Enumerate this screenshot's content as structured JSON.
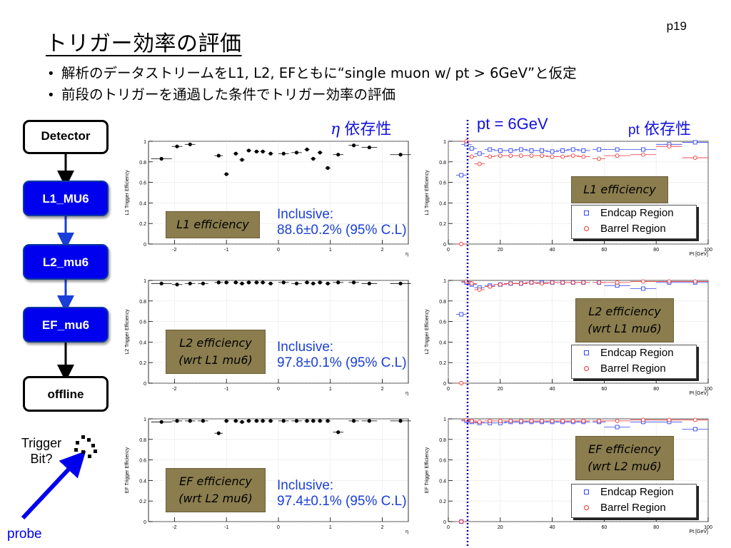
{
  "page_number": "p19",
  "title": "トリガー効率の評価",
  "bullets": [
    "解析のデータストリームをL1, L2, EFともに“single muon w/ pt > 6GeV”と仮定",
    "前段のトリガーを通過した条件でトリガー効率の評価"
  ],
  "flow": {
    "detector": "Detector",
    "l1": "L1_MU6",
    "l2": "L2_mu6",
    "ef": "EF_mu6",
    "offline": "offline",
    "trigger_bit": "Trigger\nBit?",
    "probe": "probe"
  },
  "headers": {
    "eta_sym": "η",
    "eta_dep": "依存性",
    "pt_cut": "pt = 6GeV",
    "pt_sym": "pt",
    "pt_dep": "依存性"
  },
  "eff_labels": {
    "l1": "L1 efficiency",
    "l2_line1": "L2 efficiency",
    "l2_line2": "(wrt L1 mu6)",
    "ef_line1": "EF efficiency",
    "ef_line2": "(wrt L2 mu6)"
  },
  "inclusive": {
    "label": "Inclusive:",
    "l1": "88.6±0.2% (95% C.L)",
    "l2": "97.8±0.1% (95% C.L)",
    "ef": "97.4±0.1% (95% C.L)"
  },
  "legend": {
    "endcap": "Endcap Region",
    "barrel": "Barrel Region"
  },
  "colors": {
    "endcap": "#3344ee",
    "barrel": "#ee3333",
    "accent_blue": "#0000ee",
    "label_box": "#8b7d4e"
  },
  "chart_data": [
    {
      "type": "scatter",
      "ylabel": "L1 Trigger Efficiency",
      "xlabel": "η",
      "xlim": [
        -2.5,
        2.5
      ],
      "ylim": [
        0,
        1
      ],
      "x_ticks": [
        "-2",
        "-1",
        "0",
        "1",
        "2"
      ],
      "y_ticks": [
        "0",
        "0.2",
        "0.4",
        "0.6",
        "0.8",
        "1"
      ],
      "series": [
        {
          "x": [
            -2.25,
            -1.95,
            -1.7,
            -1.15,
            -1.0,
            -0.82,
            -0.7,
            -0.57,
            -0.42,
            -0.3,
            -0.15,
            0.1,
            0.35,
            0.55,
            0.67,
            0.8,
            0.95,
            1.15,
            1.45,
            1.75,
            2.35
          ],
          "y": [
            0.83,
            0.95,
            0.97,
            0.86,
            0.68,
            0.88,
            0.82,
            0.91,
            0.9,
            0.9,
            0.88,
            0.88,
            0.89,
            0.92,
            0.83,
            0.89,
            0.74,
            0.87,
            0.96,
            0.94,
            0.87
          ],
          "xerr": [
            0.2,
            0.1,
            0.1,
            0.08,
            0.05,
            0.05,
            0.05,
            0.05,
            0.05,
            0.05,
            0.05,
            0.1,
            0.1,
            0.05,
            0.05,
            0.05,
            0.05,
            0.1,
            0.1,
            0.15,
            0.2
          ]
        }
      ]
    },
    {
      "type": "scatter",
      "ylabel": "L1 Trigger Efficiency",
      "xlabel": "Pt [GeV]",
      "xlim": [
        0,
        100
      ],
      "ylim": [
        0,
        1
      ],
      "x_ticks": [
        "0",
        "20",
        "40",
        "60",
        "80",
        "100"
      ],
      "y_ticks": [
        "0",
        "0.2",
        "0.4",
        "0.6",
        "0.8",
        "1"
      ],
      "series": [
        {
          "name": "Endcap Region",
          "x": [
            5,
            7,
            9,
            12,
            16,
            20,
            24,
            28,
            32,
            36,
            40,
            44,
            48,
            52,
            58,
            65,
            75,
            85,
            95
          ],
          "y": [
            0.67,
            0.97,
            0.93,
            0.88,
            0.92,
            0.91,
            0.91,
            0.92,
            0.91,
            0.91,
            0.9,
            0.91,
            0.92,
            0.91,
            0.92,
            0.92,
            0.92,
            0.97,
            0.99
          ]
        },
        {
          "name": "Barrel Region",
          "x": [
            5,
            7,
            9,
            12,
            16,
            20,
            24,
            28,
            32,
            36,
            40,
            44,
            48,
            52,
            58,
            65,
            75,
            85,
            95
          ],
          "y": [
            0.0,
            1.0,
            0.85,
            0.78,
            0.85,
            0.86,
            0.86,
            0.86,
            0.86,
            0.86,
            0.85,
            0.85,
            0.86,
            0.85,
            0.83,
            0.86,
            0.87,
            0.95,
            0.84
          ]
        }
      ]
    },
    {
      "type": "scatter",
      "ylabel": "L2 Trigger Efficiency",
      "xlabel": "η",
      "xlim": [
        -2.5,
        2.5
      ],
      "ylim": [
        0,
        1
      ],
      "x_ticks": [
        "-2",
        "-1",
        "0",
        "1",
        "2"
      ],
      "y_ticks": [
        "0",
        "0.2",
        "0.4",
        "0.6",
        "0.8",
        "1"
      ],
      "series": [
        {
          "x": [
            -2.25,
            -1.95,
            -1.7,
            -1.45,
            -1.15,
            -1.0,
            -0.82,
            -0.7,
            -0.57,
            -0.42,
            -0.3,
            -0.15,
            0.1,
            0.35,
            0.55,
            0.67,
            0.8,
            0.95,
            1.15,
            1.45,
            1.75,
            2.35
          ],
          "y": [
            0.97,
            0.96,
            0.97,
            0.97,
            0.98,
            0.98,
            0.98,
            0.97,
            0.98,
            0.98,
            0.98,
            0.97,
            0.98,
            0.97,
            0.98,
            0.97,
            0.98,
            0.97,
            0.98,
            0.98,
            0.97,
            0.97
          ],
          "xerr": [
            0.2,
            0.1,
            0.1,
            0.1,
            0.08,
            0.05,
            0.05,
            0.05,
            0.05,
            0.05,
            0.05,
            0.05,
            0.1,
            0.1,
            0.05,
            0.05,
            0.05,
            0.05,
            0.1,
            0.1,
            0.15,
            0.2
          ]
        }
      ]
    },
    {
      "type": "scatter",
      "ylabel": "L2 Trigger Efficiency",
      "xlabel": "Pt [GeV]",
      "xlim": [
        0,
        100
      ],
      "ylim": [
        0,
        1
      ],
      "x_ticks": [
        "0",
        "20",
        "40",
        "60",
        "80",
        "100"
      ],
      "y_ticks": [
        "0",
        "0.2",
        "0.4",
        "0.6",
        "0.8",
        "1"
      ],
      "series": [
        {
          "name": "Endcap Region",
          "x": [
            5,
            7,
            9,
            12,
            16,
            20,
            24,
            28,
            32,
            36,
            40,
            44,
            48,
            52,
            58,
            65,
            75,
            85,
            95
          ],
          "y": [
            0.67,
            0.98,
            0.96,
            0.93,
            0.95,
            0.96,
            0.97,
            0.97,
            0.98,
            0.98,
            0.98,
            0.98,
            0.98,
            0.98,
            0.98,
            0.95,
            0.92,
            0.98,
            0.98
          ]
        },
        {
          "name": "Barrel Region",
          "x": [
            5,
            7,
            9,
            12,
            16,
            20,
            24,
            28,
            32,
            36,
            40,
            44,
            48,
            52,
            58,
            65,
            75,
            85,
            95
          ],
          "y": [
            0.0,
            0.99,
            0.97,
            0.91,
            0.94,
            0.96,
            0.97,
            0.97,
            0.98,
            0.97,
            0.98,
            0.98,
            0.98,
            0.98,
            0.98,
            0.98,
            0.99,
            0.99,
            0.99
          ]
        }
      ]
    },
    {
      "type": "scatter",
      "ylabel": "EF Trigger Efficiency",
      "xlabel": "η",
      "xlim": [
        -2.5,
        2.5
      ],
      "ylim": [
        0,
        1
      ],
      "x_ticks": [
        "-2",
        "-1",
        "0",
        "1",
        "2"
      ],
      "y_ticks": [
        "0",
        "0.2",
        "0.4",
        "0.6",
        "0.8",
        "1"
      ],
      "series": [
        {
          "x": [
            -2.25,
            -1.95,
            -1.7,
            -1.45,
            -1.15,
            -1.0,
            -0.82,
            -0.7,
            -0.57,
            -0.42,
            -0.3,
            -0.15,
            0.1,
            0.35,
            0.55,
            0.67,
            0.8,
            0.95,
            1.15,
            1.45,
            1.75,
            2.35
          ],
          "y": [
            0.97,
            0.98,
            0.98,
            0.98,
            0.86,
            0.98,
            0.98,
            0.97,
            0.98,
            0.98,
            0.98,
            0.98,
            0.98,
            0.98,
            0.98,
            0.98,
            0.98,
            0.98,
            0.87,
            0.98,
            0.98,
            0.98
          ],
          "xerr": [
            0.2,
            0.1,
            0.1,
            0.1,
            0.08,
            0.05,
            0.05,
            0.05,
            0.05,
            0.05,
            0.05,
            0.05,
            0.1,
            0.1,
            0.05,
            0.05,
            0.05,
            0.05,
            0.1,
            0.1,
            0.15,
            0.2
          ]
        }
      ]
    },
    {
      "type": "scatter",
      "ylabel": "EF Trigger Efficiency",
      "xlabel": "Pt [GeV]",
      "xlim": [
        0,
        100
      ],
      "ylim": [
        0,
        1
      ],
      "x_ticks": [
        "0",
        "20",
        "40",
        "60",
        "80",
        "100"
      ],
      "y_ticks": [
        "0",
        "0.2",
        "0.4",
        "0.6",
        "0.8",
        "1"
      ],
      "series": [
        {
          "name": "Endcap Region",
          "x": [
            5,
            7,
            9,
            12,
            16,
            20,
            24,
            28,
            32,
            36,
            40,
            44,
            48,
            52,
            58,
            65,
            75,
            85,
            95
          ],
          "y": [
            0.0,
            0.98,
            0.97,
            0.96,
            0.96,
            0.96,
            0.97,
            0.97,
            0.97,
            0.97,
            0.97,
            0.97,
            0.97,
            0.97,
            0.97,
            0.92,
            0.97,
            0.97,
            0.9
          ]
        },
        {
          "name": "Barrel Region",
          "x": [
            5,
            7,
            9,
            12,
            16,
            20,
            24,
            28,
            32,
            36,
            40,
            44,
            48,
            52,
            58,
            65,
            75,
            85,
            95
          ],
          "y": [
            0.0,
            0.99,
            0.98,
            0.97,
            0.98,
            0.98,
            0.98,
            0.98,
            0.98,
            0.98,
            0.98,
            0.98,
            0.98,
            0.98,
            0.98,
            0.98,
            0.99,
            0.99,
            0.99
          ]
        }
      ]
    }
  ]
}
